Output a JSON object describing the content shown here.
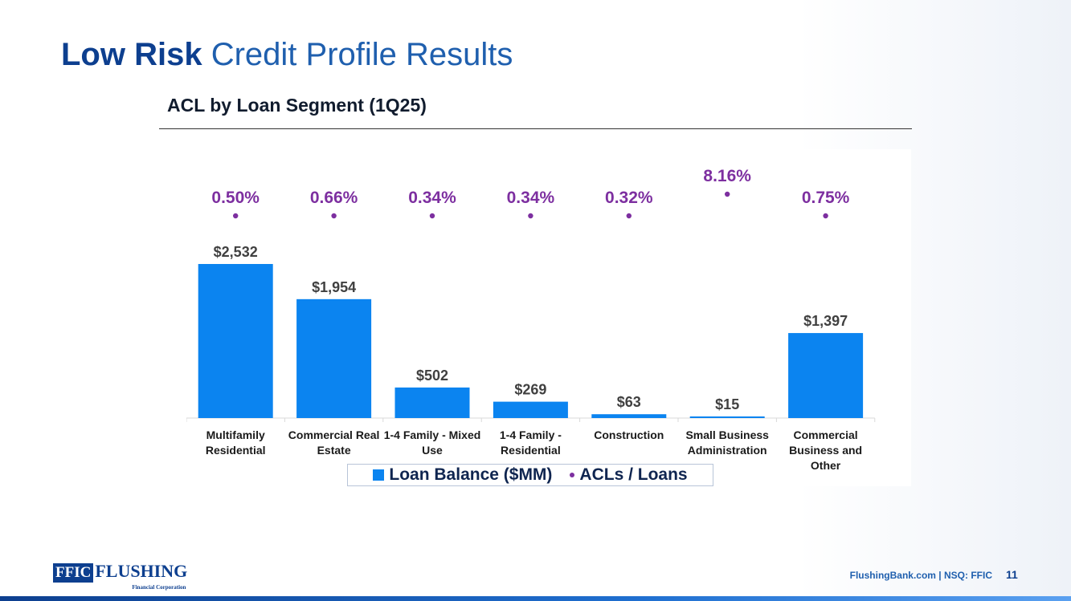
{
  "slide": {
    "title_bold": "Low Risk",
    "title_rest": " Credit Profile Results",
    "subtitle": "ACL by Loan Segment (1Q25)",
    "footer": "FlushingBank.com | NSQ: FFIC",
    "page_number": "11"
  },
  "logo": {
    "box_text": "FFIC",
    "name": "FLUSHING",
    "tagline": "Financial Corporation"
  },
  "colors": {
    "bar": "#0b84f0",
    "dot": "#7d2fa0",
    "title": "#1f5fae",
    "title_bold": "#0d3f8f"
  },
  "chart_data": {
    "type": "bar",
    "categories": [
      "Multifamily Residential",
      "Commercial Real Estate",
      "1-4 Family - Mixed Use",
      "1-4 Family - Residential",
      "Construction",
      "Small Business Administration",
      "Commercial Business and Other"
    ],
    "category_lines": [
      [
        "Multifamily",
        "Residential"
      ],
      [
        "Commercial Real",
        "Estate"
      ],
      [
        "1-4 Family - Mixed",
        "Use"
      ],
      [
        "1-4 Family -",
        "Residential"
      ],
      [
        "Construction"
      ],
      [
        "Small Business",
        "Administration"
      ],
      [
        "Commercial",
        "Business and",
        "Other"
      ]
    ],
    "series": [
      {
        "name": "Loan Balance ($MM)",
        "type": "bar",
        "values": [
          2532,
          1954,
          502,
          269,
          63,
          15,
          1397
        ],
        "labels": [
          "$2,532",
          "$1,954",
          "$502",
          "$269",
          "$63",
          "$15",
          "$1,397"
        ]
      },
      {
        "name": "ACLs / Loans",
        "type": "scatter",
        "values": [
          0.5,
          0.66,
          0.34,
          0.34,
          0.32,
          8.16,
          0.75
        ],
        "labels": [
          "0.50%",
          "0.66%",
          "0.34%",
          "0.34%",
          "0.32%",
          "8.16%",
          "0.75%"
        ]
      }
    ],
    "legend_position": "bottom",
    "grid": false
  }
}
